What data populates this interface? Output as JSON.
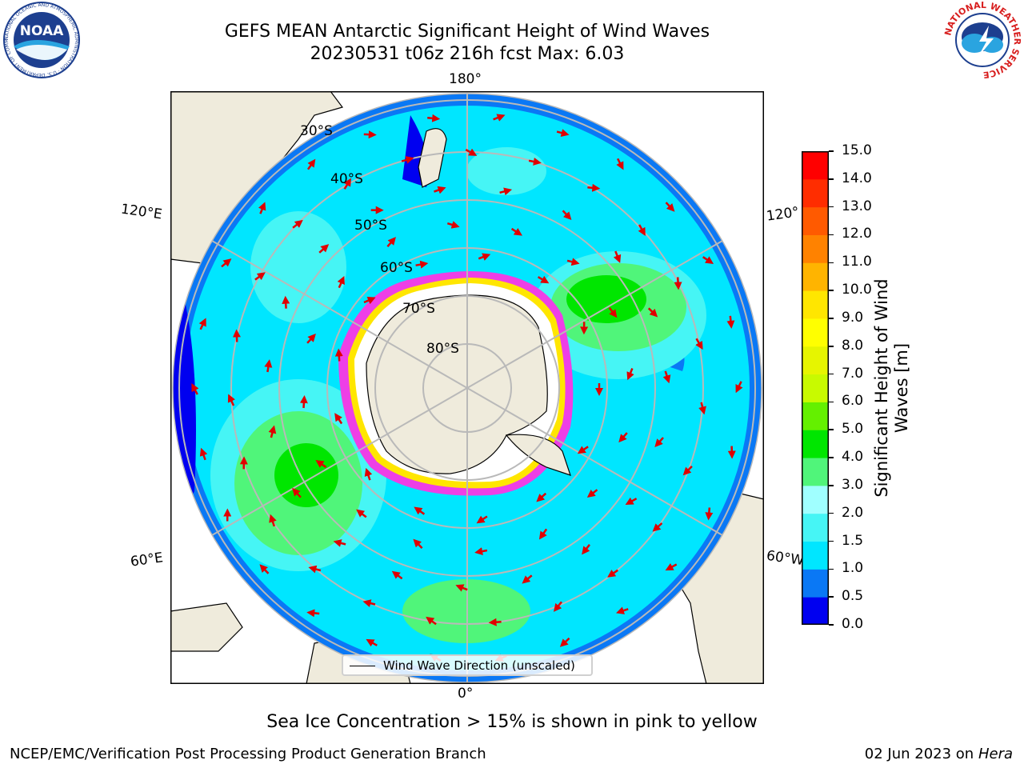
{
  "header": {
    "title_line1": "GEFS MEAN Antarctic Significant Height of Wind Waves",
    "title_line2": "20230531 t06z 216h fcst   Max: 6.03"
  },
  "logos": {
    "noaa": {
      "text": "NOAA",
      "ring_text": "NATIONAL OCEANIC AND ATMOSPHERIC ADMINISTRATION · U.S. DEPARTMENT OF COMMERCE",
      "color": "#1d3f8f"
    },
    "nws": {
      "ring_text": "NATIONAL WEATHER SERVICE",
      "color": "#d81e1e"
    }
  },
  "map": {
    "longitude_labels": {
      "top": "180°",
      "bottom": "0°",
      "left_upper": "120°E",
      "left_lower": "60°E",
      "right_upper": "120°",
      "right_lower": "60°W"
    },
    "latitude_labels": [
      "30°S",
      "40°S",
      "50°S",
      "60°S",
      "70°S",
      "80°S"
    ],
    "colors": {
      "land": "#efebdc",
      "ice_interior": "#ffffff",
      "ice_edge": "#ee3fe6",
      "arrow": "#e00000",
      "grid": "#b9b9b9"
    }
  },
  "legend": {
    "label": "Wind Wave Direction (unscaled)"
  },
  "colorbar": {
    "title": "Significant Height of Wind Waves [m]",
    "ticks": [
      "0.0",
      "0.5",
      "1.0",
      "1.5",
      "2.0",
      "3.0",
      "4.0",
      "5.0",
      "6.0",
      "7.0",
      "8.0",
      "9.0",
      "10.0",
      "11.0",
      "12.0",
      "13.0",
      "14.0",
      "15.0"
    ],
    "colors": [
      "#0000f0",
      "#0a78f5",
      "#00e6ff",
      "#46f5f5",
      "#a0ffff",
      "#50f57a",
      "#00e600",
      "#64f000",
      "#c8fa00",
      "#e6f500",
      "#ffff00",
      "#ffe600",
      "#ffb400",
      "#ff8200",
      "#ff5a00",
      "#ff2d00",
      "#ff0000"
    ]
  },
  "notes": {
    "ice": "Sea Ice Concentration > 15% is shown in pink to yellow"
  },
  "footer": {
    "left": "NCEP/EMC/Verification Post Processing Product Generation Branch",
    "date": "02 Jun 2023 on",
    "host": "Hera"
  }
}
